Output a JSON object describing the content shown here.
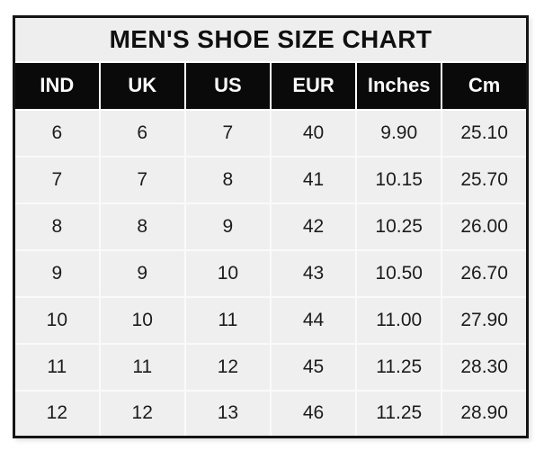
{
  "page_title": "MEN'S SHOE SIZE CHART",
  "colors": {
    "page_background": "#ffffff",
    "title_band_background": "#efeeee",
    "header_background": "#0a0a0a",
    "header_text": "#fbfbfb",
    "cell_background": "#f0efef",
    "cell_text": "#1c1c1c",
    "outer_border": "#141414",
    "cell_separator": "#ffffff"
  },
  "chart_data": {
    "type": "table",
    "title": "MEN'S SHOE SIZE CHART",
    "columns": [
      "IND",
      "UK",
      "US",
      "EUR",
      "Inches",
      "Cm"
    ],
    "rows": [
      [
        "6",
        "6",
        "7",
        "40",
        "9.90",
        "25.10"
      ],
      [
        "7",
        "7",
        "8",
        "41",
        "10.15",
        "25.70"
      ],
      [
        "8",
        "8",
        "9",
        "42",
        "10.25",
        "26.00"
      ],
      [
        "9",
        "9",
        "10",
        "43",
        "10.50",
        "26.70"
      ],
      [
        "10",
        "10",
        "11",
        "44",
        "11.00",
        "27.90"
      ],
      [
        "11",
        "11",
        "12",
        "45",
        "11.25",
        "28.30"
      ],
      [
        "12",
        "12",
        "13",
        "46",
        "11.25",
        "28.90"
      ]
    ]
  }
}
